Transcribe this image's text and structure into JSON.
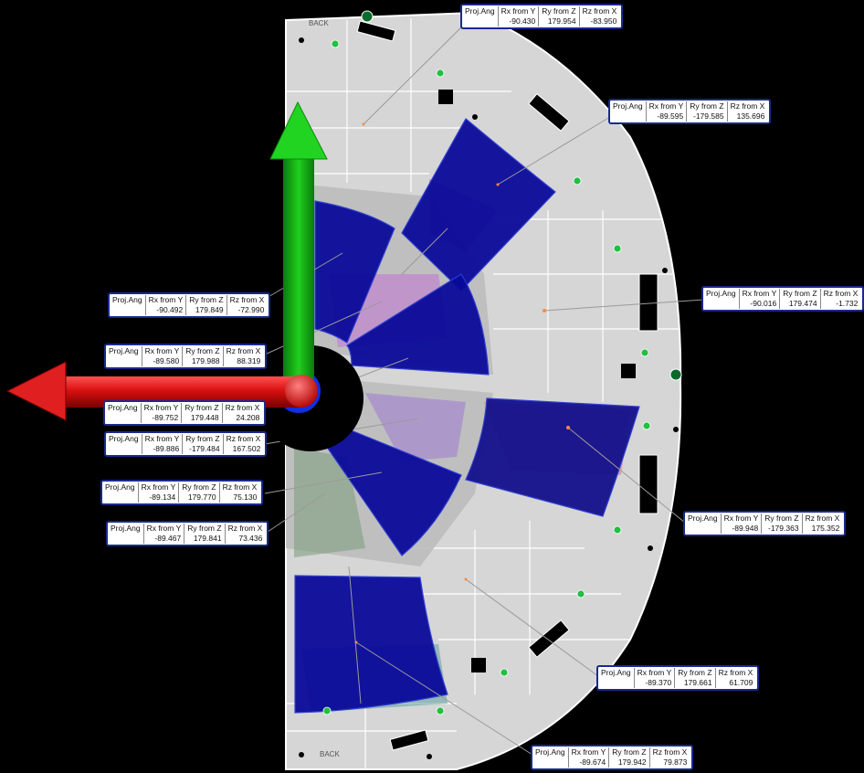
{
  "colors": {
    "background": "#000000",
    "plate": "#d6d6d6",
    "plate_edge": "#ffffff",
    "panel_blue": "#0a0a9a",
    "panel_blue_edge": "#2a3ad0",
    "axis_red": "#d81010",
    "axis_green": "#18c018",
    "axis_blue": "#1030e0",
    "tag_border": "#1a2a8c"
  },
  "icons": [
    "crosshair-marker-icon",
    "green-plus-marker-icon"
  ],
  "plate_labels": {
    "top_label": "BACK",
    "bottom_label": "BACK"
  },
  "columns": {
    "proj": "Proj.Ang",
    "rx": "Rx from Y",
    "ry": "Ry from Z",
    "rz": "Rz from X"
  },
  "annotations": [
    {
      "id": "a1",
      "rx": "-90.430",
      "ry": "179.954",
      "rz": "-83.950"
    },
    {
      "id": "a2",
      "rx": "-89.595",
      "ry": "-179.585",
      "rz": "135.696"
    },
    {
      "id": "a3",
      "rx": "-90.016",
      "ry": "179.474",
      "rz": "-1.732"
    },
    {
      "id": "a4",
      "rx": "-90.492",
      "ry": "179.849",
      "rz": "-72.990"
    },
    {
      "id": "a5",
      "rx": "-89.580",
      "ry": "179.988",
      "rz": "88.319"
    },
    {
      "id": "a6",
      "rx": "-89.752",
      "ry": "179.448",
      "rz": "24.208"
    },
    {
      "id": "a7",
      "rx": "-89.886",
      "ry": "-179.484",
      "rz": "167.502"
    },
    {
      "id": "a8",
      "rx": "-89.134",
      "ry": "179.770",
      "rz": "75.130"
    },
    {
      "id": "a9",
      "rx": "-89.467",
      "ry": "179.841",
      "rz": "73.436"
    },
    {
      "id": "a10",
      "rx": "-89.948",
      "ry": "-179.363",
      "rz": "175.352"
    },
    {
      "id": "a11",
      "rx": "-89.370",
      "ry": "179.661",
      "rz": "61.709"
    },
    {
      "id": "a12",
      "rx": "-89.674",
      "ry": "179.942",
      "rz": "79.873"
    }
  ]
}
